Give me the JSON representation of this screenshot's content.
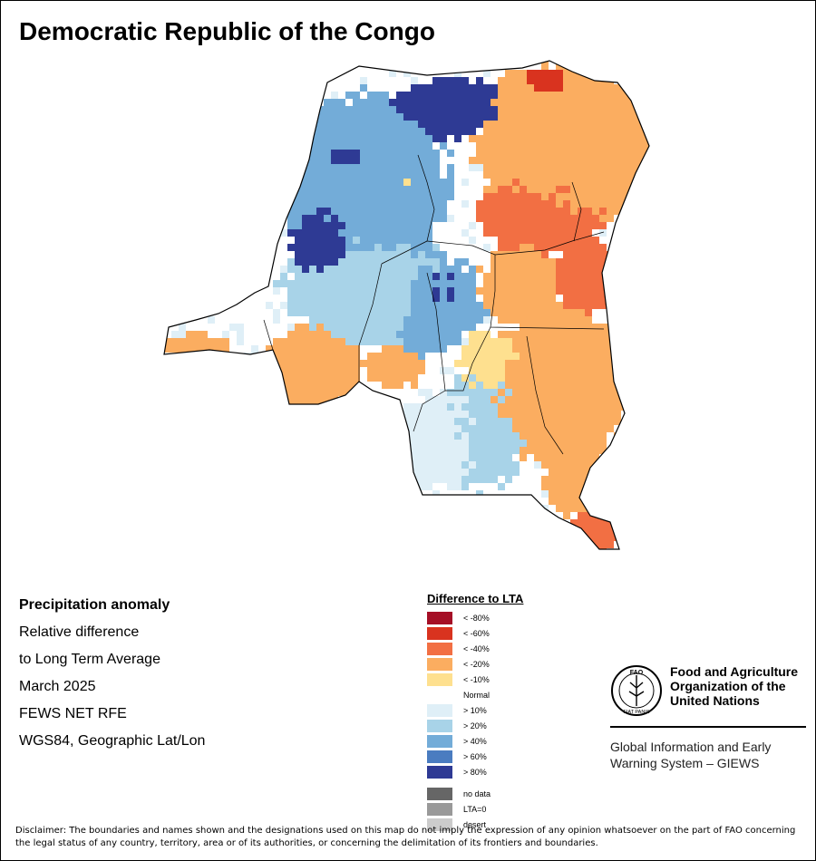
{
  "title": "Democratic Republic of the Congo",
  "info": [
    {
      "text": "Precipitation anomaly",
      "bold": true
    },
    {
      "text": "Relative difference",
      "bold": false
    },
    {
      "text": "to Long Term Average",
      "bold": false
    },
    {
      "text": "March 2025",
      "bold": false
    },
    {
      "text": "FEWS NET RFE",
      "bold": false
    },
    {
      "text": "WGS84, Geographic Lat/Lon",
      "bold": false
    }
  ],
  "legend": {
    "title": "Difference to LTA",
    "classes": [
      {
        "label": "< -80%",
        "color": "#a50f26"
      },
      {
        "label": "< -60%",
        "color": "#d9331f"
      },
      {
        "label": "< -40%",
        "color": "#f26f43"
      },
      {
        "label": "< -20%",
        "color": "#fbad60"
      },
      {
        "label": "< -10%",
        "color": "#fee08f"
      },
      {
        "label": "Normal",
        "color": "#ffffff"
      },
      {
        "label": "> 10%",
        "color": "#dfeff7"
      },
      {
        "label": "> 20%",
        "color": "#a8d3e8"
      },
      {
        "label": "> 40%",
        "color": "#73acd8"
      },
      {
        "label": "> 60%",
        "color": "#4a7cc0"
      },
      {
        "label": "> 80%",
        "color": "#2e3a94"
      }
    ],
    "extra": [
      {
        "label": "no data",
        "color": "#666666"
      },
      {
        "label": "LTA=0",
        "color": "#999999"
      },
      {
        "label": "desert",
        "color": "#cccccc"
      }
    ]
  },
  "fao": {
    "name": [
      "Food and Agriculture",
      "Organization of the",
      "United Nations"
    ],
    "logo_text": "FIAT PANIS",
    "logo_letters": "FAO",
    "system": [
      "Global Information and Early",
      "Warning System – GIEWS"
    ]
  },
  "disclaimer": "Disclaimer: The boundaries and names shown and the designations used on this map do not imply the expression of any opinion whatsoever on the part of FAO concerning the legal status of any country, territory, area or of its authorities, or concerning the delimitation of its frontiers and boundaries.",
  "map": {
    "anomaly_pattern": [
      {
        "region": "north-west and central-west",
        "class": "> 40%"
      },
      {
        "region": "far north-centre",
        "class": "> 80%"
      },
      {
        "region": "north-east",
        "class": "< -20%"
      },
      {
        "region": "north-east border",
        "class": "< -40%"
      },
      {
        "region": "east and south-east",
        "class": "< -20%"
      },
      {
        "region": "far south-east tip",
        "class": "< -40%"
      },
      {
        "region": "south-west",
        "class": "< -20%"
      },
      {
        "region": "south-centre",
        "class": "> 10%"
      }
    ]
  }
}
